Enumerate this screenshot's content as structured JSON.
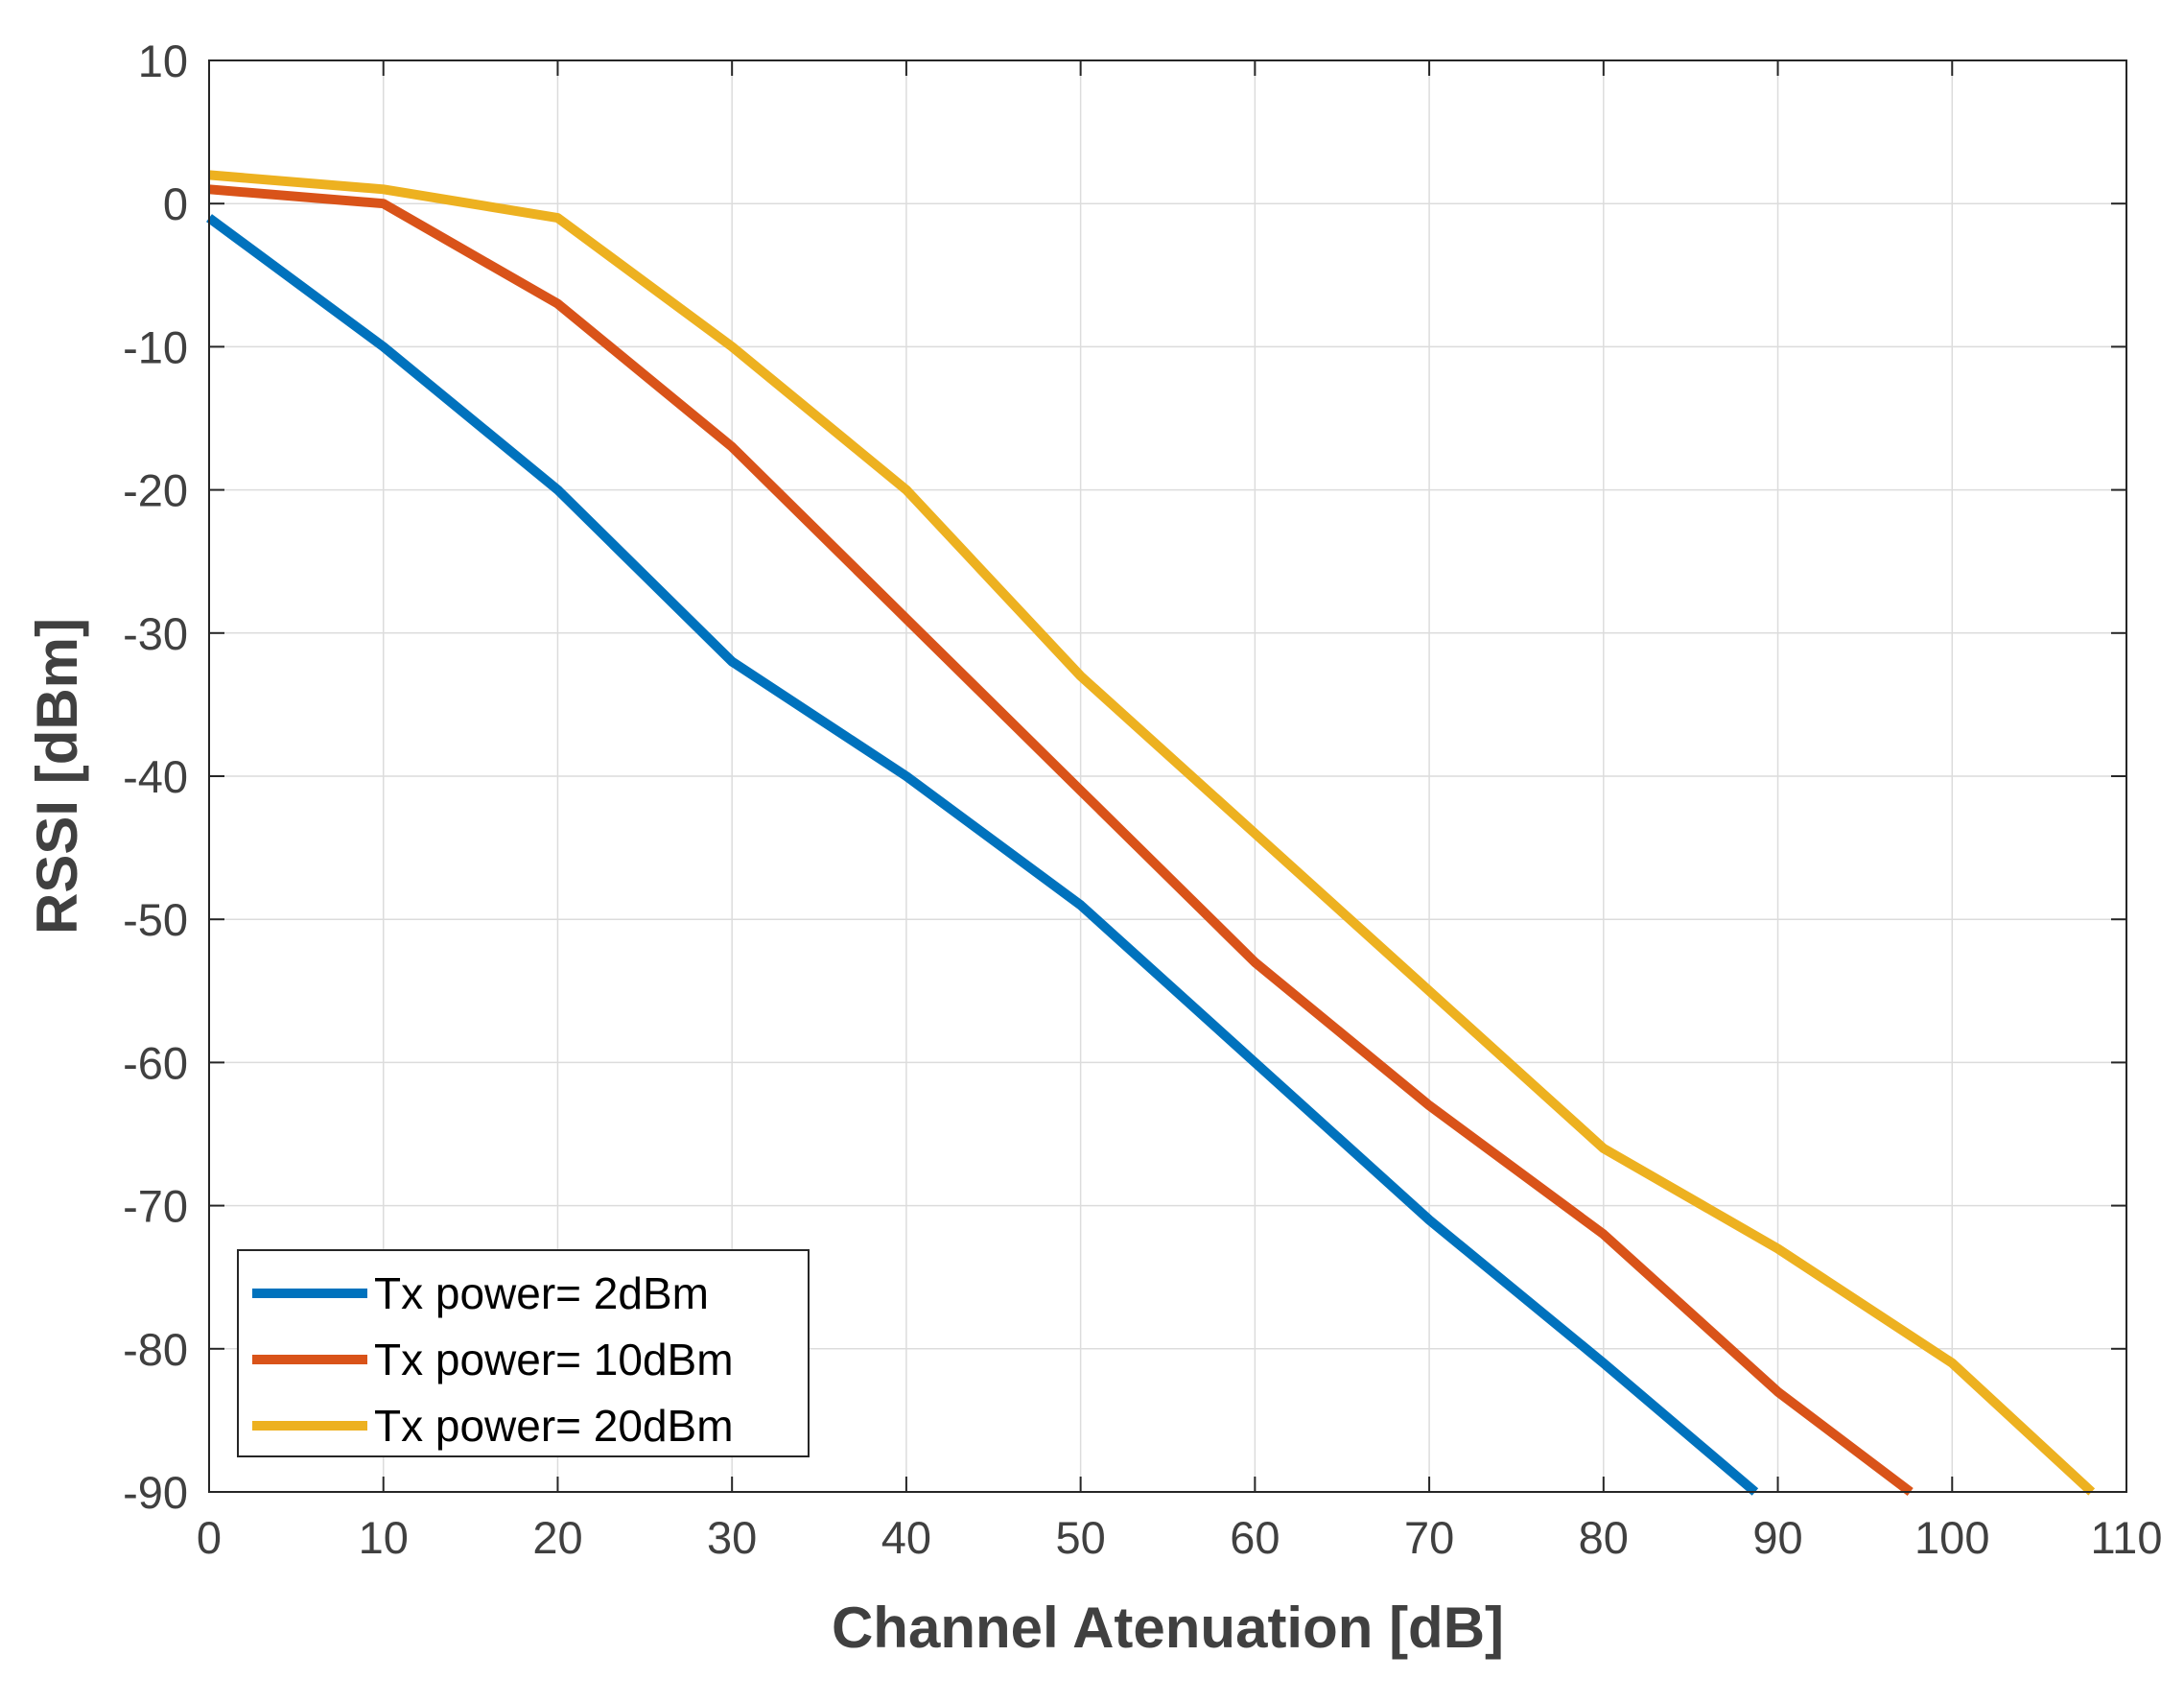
{
  "chart_data": {
    "type": "line",
    "title": "",
    "xlabel": "Channel Atenuation [dB]",
    "ylabel": "RSSI [dBm]",
    "xlim": [
      0,
      110
    ],
    "ylim": [
      -90,
      10
    ],
    "xticks": [
      0,
      10,
      20,
      30,
      40,
      50,
      60,
      70,
      80,
      90,
      100,
      110
    ],
    "yticks": [
      10,
      0,
      -10,
      -20,
      -30,
      -40,
      -50,
      -60,
      -70,
      -80,
      -90
    ],
    "grid": true,
    "legend_position": "bottom-left",
    "series": [
      {
        "name": "Tx power= 2dBm",
        "color": "#0072BD",
        "x": [
          0,
          10,
          20,
          30,
          40,
          50,
          60,
          70,
          80,
          88.7
        ],
        "y": [
          -1,
          -10,
          -20,
          -32,
          -40,
          -49,
          -60,
          -71,
          -81,
          -90
        ]
      },
      {
        "name": "Tx power= 10dBm",
        "color": "#D95319",
        "x": [
          0,
          10,
          20,
          30,
          40,
          50,
          60,
          70,
          80,
          90,
          97.6
        ],
        "y": [
          1,
          0,
          -7,
          -17,
          -29,
          -41,
          -53,
          -63,
          -72,
          -83,
          -90
        ]
      },
      {
        "name": "Tx power= 20dBm",
        "color": "#EDB120",
        "x": [
          0,
          10,
          20,
          30,
          40,
          50,
          60,
          70,
          80,
          90,
          100,
          108
        ],
        "y": [
          2,
          1,
          -1,
          -10,
          -20,
          -33,
          -44,
          -55,
          -66,
          -73,
          -81,
          -90
        ]
      }
    ]
  }
}
